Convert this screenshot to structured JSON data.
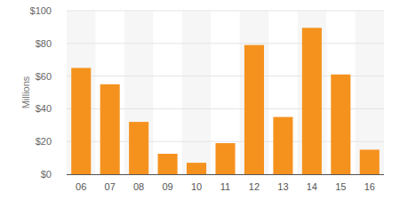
{
  "chart_data": {
    "type": "bar",
    "ylabel": "Millions",
    "categories": [
      "06",
      "07",
      "08",
      "09",
      "10",
      "11",
      "12",
      "13",
      "14",
      "15",
      "16"
    ],
    "values": [
      65,
      55,
      32,
      12.5,
      7,
      19,
      79,
      35,
      89.5,
      61,
      15
    ],
    "color": "#f5921e",
    "ylim": [
      0,
      100
    ],
    "yticks": [
      {
        "value": 0,
        "label": "$0"
      },
      {
        "value": 20,
        "label": "$20"
      },
      {
        "value": 40,
        "label": "$40"
      },
      {
        "value": 60,
        "label": "$60"
      },
      {
        "value": 80,
        "label": "$80"
      },
      {
        "value": 100,
        "label": "$100"
      }
    ],
    "grid": true
  }
}
